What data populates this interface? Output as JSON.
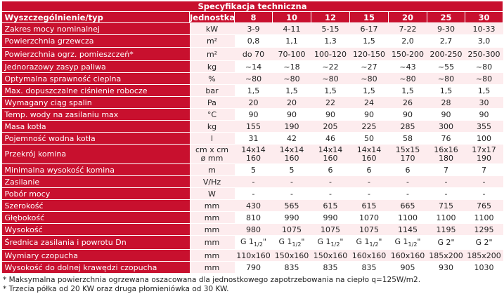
{
  "title": "Specyfikacja techniczna",
  "header": {
    "name": "Wyszczególnienie/typ",
    "unit": "Jednostka",
    "types": [
      "8",
      "10",
      "12",
      "15",
      "20",
      "25",
      "30"
    ]
  },
  "rows": [
    {
      "label": "Zakres mocy nominalnej",
      "unit": "kW",
      "values": [
        "3-9",
        "4-11",
        "5-15",
        "6-17",
        "7-22",
        "9-30",
        "10-33"
      ]
    },
    {
      "label": "Powierzchnia grzewcza",
      "unit": "m²",
      "values": [
        "0,8",
        "1,1",
        "1,3",
        "1,5",
        "2,0",
        "2,7",
        "3,0"
      ]
    },
    {
      "label": "Powierzchnia ogrz. pomieszczeń*",
      "unit": "m²",
      "values": [
        "do 70",
        "70-100",
        "100-120",
        "120-150",
        "150-200",
        "200-250",
        "250-300"
      ]
    },
    {
      "label": "Jednorazowy zasyp paliwa",
      "unit": "kg",
      "values": [
        "~14",
        "~18",
        "~22",
        "~27",
        "~43",
        "~55",
        "~80"
      ]
    },
    {
      "label": "Optymalna sprawność cieplna",
      "unit": "%",
      "values": [
        "~80",
        "~80",
        "~80",
        "~80",
        "~80",
        "~80",
        "~80"
      ]
    },
    {
      "label": "Max. dopuszczalne ciśnienie robocze",
      "unit": "bar",
      "values": [
        "1,5",
        "1,5",
        "1,5",
        "1,5",
        "1,5",
        "1,5",
        "1,5"
      ]
    },
    {
      "label": "Wymagany ciąg spalin",
      "unit": "Pa",
      "values": [
        "20",
        "20",
        "22",
        "24",
        "26",
        "28",
        "30"
      ]
    },
    {
      "label": "Temp. wody na zasilaniu max",
      "unit": "°C",
      "values": [
        "90",
        "90",
        "90",
        "90",
        "90",
        "90",
        "90"
      ]
    },
    {
      "label": "Masa kotła",
      "unit": "kg",
      "values": [
        "155",
        "190",
        "205",
        "225",
        "285",
        "300",
        "355"
      ]
    },
    {
      "label": "Pojemność wodna kotła",
      "unit": "l",
      "values": [
        "31",
        "42",
        "46",
        "50",
        "58",
        "76",
        "100"
      ]
    },
    {
      "label": "Przekrój komina",
      "unit": "cm x cm",
      "unit2": "ø mm",
      "values": [
        "14x14",
        "14x14",
        "14x14",
        "14x14",
        "15x15",
        "16x16",
        "17x17"
      ],
      "values2": [
        "160",
        "160",
        "160",
        "160",
        "170",
        "180",
        "190"
      ]
    },
    {
      "label": "Minimalna wysokość komina",
      "unit": "m",
      "values": [
        "5",
        "5",
        "6",
        "6",
        "6",
        "7",
        "7"
      ]
    },
    {
      "label": "Zasilanie",
      "unit": "V/Hz",
      "values": [
        "-",
        "-",
        "-",
        "-",
        "-",
        "-",
        "-"
      ]
    },
    {
      "label": "Pobór mocy",
      "unit": "W",
      "values": [
        "-",
        "-",
        "-",
        "-",
        "-",
        "-",
        "-"
      ]
    },
    {
      "label": "Szerokość",
      "unit": "mm",
      "values": [
        "430",
        "565",
        "615",
        "615",
        "665",
        "715",
        "765"
      ]
    },
    {
      "label": "Głębokość",
      "unit": "mm",
      "values": [
        "810",
        "990",
        "990",
        "1070",
        "1100",
        "1100",
        "1100"
      ]
    },
    {
      "label": "Wysokość",
      "unit": "mm",
      "values": [
        "980",
        "1075",
        "1075",
        "1075",
        "1145",
        "1195",
        "1295"
      ]
    },
    {
      "label": "Średnica zasilania i powrotu Dn",
      "unit": "mm",
      "values": [
        "G 11/2\"",
        "G 11/2\"",
        "G 11/2\"",
        "G 11/2\"",
        "G 11/2\"",
        "G 2\"",
        "G 2\""
      ]
    },
    {
      "label": "Wymiary czopucha",
      "unit": "mm",
      "values": [
        "110x160",
        "150x160",
        "150x160",
        "160x160",
        "160x160",
        "185x200",
        "185x200"
      ]
    },
    {
      "label": "Wysokość do dolnej krawędzi czopucha",
      "unit": "mm",
      "values": [
        "790",
        "835",
        "835",
        "835",
        "905",
        "930",
        "1030"
      ]
    }
  ],
  "notes": [
    "* Maksymalna powierzchnia ogrzewana oszacowana dla jednostkowego zapotrzebowania  na ciepło q=125W/m2.",
    "* Trzecia półka od 20 KW oraz druga płomieniówka od 30 KW."
  ]
}
